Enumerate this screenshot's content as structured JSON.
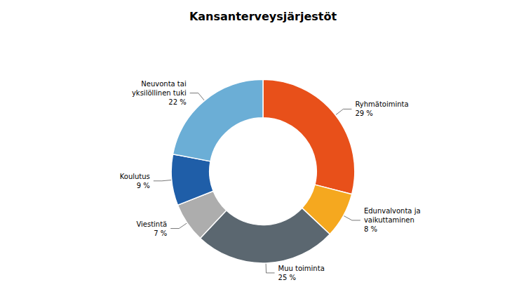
{
  "chart_data": {
    "type": "pie",
    "title": "Kansanterveysjärjestöt",
    "categories": [
      "Ryhmätoiminta",
      "Edunvalvonta ja\nvaikuttaminen",
      "Muu toiminta",
      "Viestintä",
      "Koulutus",
      "Neuvonta tai\nyksilöllinen tuki"
    ],
    "values": [
      29,
      8,
      25,
      7,
      9,
      22
    ],
    "value_labels": [
      "29 %",
      "8 %",
      "25 %",
      "7 %",
      "9 %",
      "22 %"
    ],
    "colors": [
      "#E8501A",
      "#F5A81F",
      "#5B6770",
      "#ADADAD",
      "#1F5EA8",
      "#6BAED6"
    ],
    "data_labels": true
  }
}
